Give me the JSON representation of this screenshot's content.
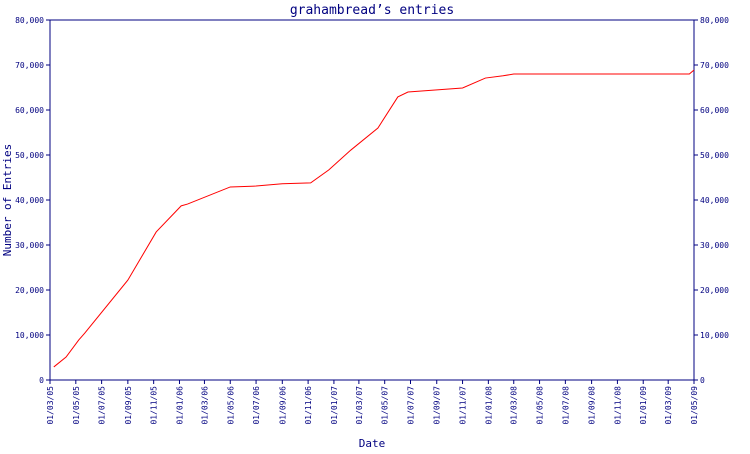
{
  "chart_data": {
    "type": "line",
    "title": "grahambread’s entries",
    "x_label": "Date",
    "y_label": "Number of Entries",
    "x": [
      "10/03/05",
      "08/04/05",
      "08/05/05",
      "22/05/05",
      "01/09/05",
      "07/11/05",
      "05/01/06",
      "20/01/06",
      "01/05/06",
      "01/07/06",
      "01/09/06",
      "07/11/06",
      "20/12/06",
      "10/02/07",
      "15/04/07",
      "01/06/07",
      "25/06/07",
      "01/11/07",
      "25/12/07",
      "05/02/08",
      "01/03/08",
      "20/04/09",
      "01/05/09"
    ],
    "series": [
      {
        "name": "grahambread",
        "color": "#ff0000",
        "values": [
          2900,
          5100,
          8900,
          10400,
          22200,
          32900,
          38700,
          39100,
          42900,
          43100,
          43600,
          43800,
          46700,
          51100,
          56000,
          62900,
          64000,
          64900,
          67100,
          67600,
          68000,
          68000,
          68900
        ]
      }
    ],
    "xlim": [
      "01/03/05",
      "01/05/09"
    ],
    "xticks": [
      "01/03/05",
      "01/05/05",
      "01/07/05",
      "01/09/05",
      "01/11/05",
      "01/01/06",
      "01/03/06",
      "01/05/06",
      "01/07/06",
      "01/09/06",
      "01/11/06",
      "01/01/07",
      "01/03/07",
      "01/05/07",
      "01/07/07",
      "01/09/07",
      "01/11/07",
      "01/01/08",
      "01/03/08",
      "01/05/08",
      "01/07/08",
      "01/09/08",
      "01/11/08",
      "01/01/09",
      "01/03/09",
      "01/05/09"
    ],
    "ylim": [
      0,
      80000
    ],
    "yticks": [
      0,
      {
        "value": 10000,
        "label": "10,000"
      },
      {
        "value": 20000,
        "label": "20,000"
      },
      {
        "value": 30000,
        "label": "30,000"
      },
      {
        "value": 40000,
        "label": "40,000"
      },
      {
        "value": 50000,
        "label": "50,000"
      },
      {
        "value": 60000,
        "label": "60,000"
      },
      {
        "value": 70000,
        "label": "70,000"
      },
      {
        "value": 80000,
        "label": "80,000"
      }
    ]
  }
}
